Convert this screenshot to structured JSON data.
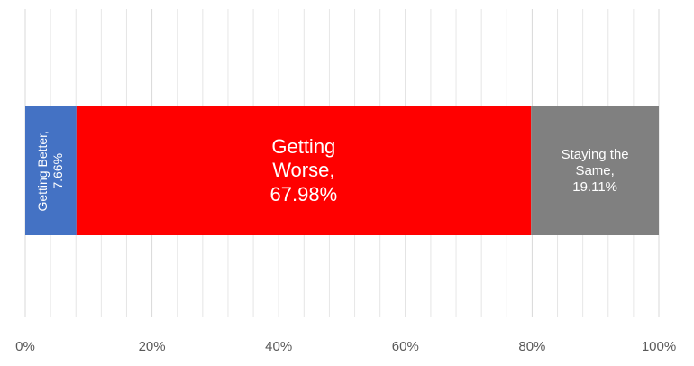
{
  "chart_data": {
    "type": "bar",
    "orientation": "horizontal",
    "stacking": "percent",
    "series": [
      {
        "color": "#4472c4",
        "values": [
          7.66
        ],
        "value_labels": [
          "Getting Better,\n7.66%"
        ],
        "label_rotation": -90,
        "label_size": 14
      },
      {
        "color": "#ff0000",
        "values": [
          67.98
        ],
        "value_labels": [
          "Getting\nWorse,\n67.98%"
        ],
        "label_rotation": 0,
        "label_size": 22
      },
      {
        "color": "#808080",
        "values": [
          19.11
        ],
        "value_labels": [
          "Staying the\nSame,\n19.11%"
        ],
        "label_rotation": 0,
        "label_size": 15
      }
    ],
    "xlim": [
      0,
      100
    ],
    "xticks": [
      {
        "value": 0,
        "label": "0%"
      },
      {
        "value": 20,
        "label": "20%"
      },
      {
        "value": 40,
        "label": "40%"
      },
      {
        "value": 60,
        "label": "60%"
      },
      {
        "value": 80,
        "label": "80%"
      },
      {
        "value": 100,
        "label": "100%"
      }
    ],
    "minor_xticks": [
      4,
      8,
      12,
      16,
      24,
      28,
      32,
      36,
      44,
      48,
      52,
      56,
      64,
      68,
      72,
      76,
      84,
      88,
      92,
      96
    ],
    "grid": true
  }
}
